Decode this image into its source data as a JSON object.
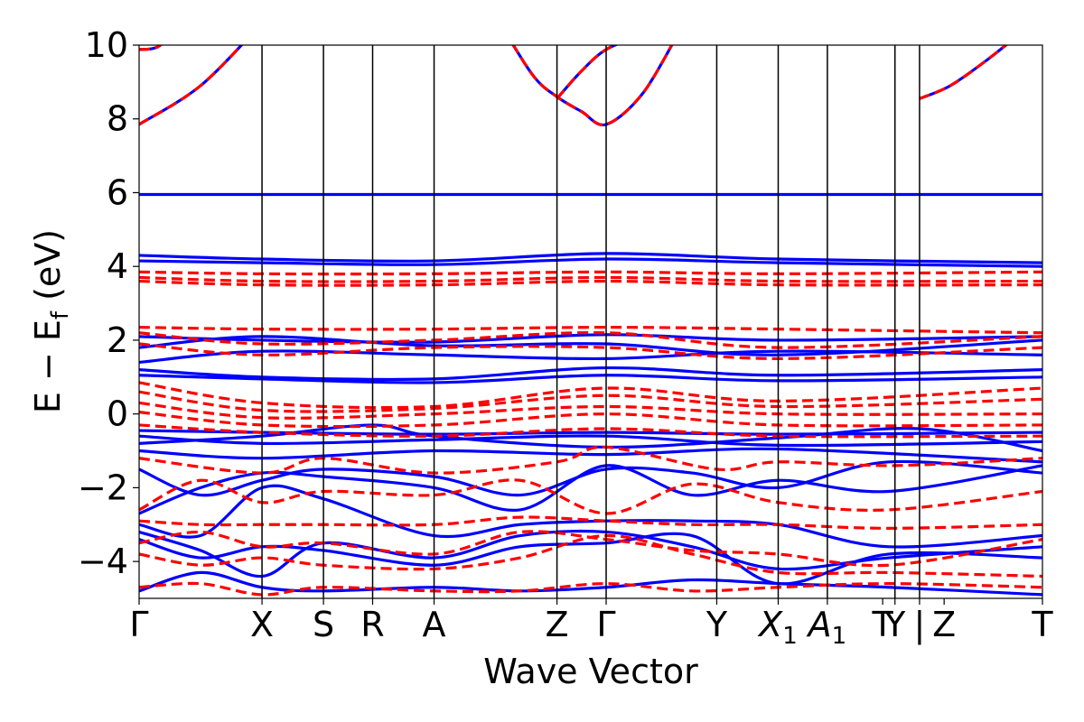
{
  "chart_data": {
    "type": "line",
    "title": "",
    "xlabel": "Wave Vector",
    "ylabel_parts": {
      "main": "E − E",
      "subscript": "f",
      "unit": " (eV)"
    },
    "ylim": [
      -5,
      10
    ],
    "yticks": [
      10,
      8,
      6,
      4,
      2,
      0,
      -2,
      -4
    ],
    "ytick_labels": [
      "10",
      "8",
      "6",
      "4",
      "2",
      "0",
      "−2",
      "−4"
    ],
    "grid": false,
    "legend": "none",
    "x_range": [
      0,
      7.35
    ],
    "kpoints": [
      {
        "pos": 0.0,
        "label": "Γ",
        "sub": ""
      },
      {
        "pos": 1.0,
        "label": "X",
        "sub": ""
      },
      {
        "pos": 1.5,
        "label": "S",
        "sub": ""
      },
      {
        "pos": 1.9,
        "label": "R",
        "sub": ""
      },
      {
        "pos": 2.4,
        "label": "A",
        "sub": ""
      },
      {
        "pos": 3.4,
        "label": "Z",
        "sub": ""
      },
      {
        "pos": 3.8,
        "label": "Γ",
        "sub": ""
      },
      {
        "pos": 4.7,
        "label": "Y",
        "sub": ""
      },
      {
        "pos": 5.2,
        "label": "X",
        "sub": "1"
      },
      {
        "pos": 5.6,
        "label": "A",
        "sub": "1"
      },
      {
        "pos": 6.05,
        "label": "T",
        "sub": ""
      },
      {
        "pos": 6.15,
        "label": "Y",
        "sub": ""
      },
      {
        "pos": 6.35,
        "label": "|",
        "sub": ""
      },
      {
        "pos": 6.55,
        "label": "Z",
        "sub": ""
      },
      {
        "pos": 7.35,
        "label": "T",
        "sub": ""
      }
    ],
    "vlines": [
      1.0,
      1.5,
      1.9,
      2.4,
      3.4,
      3.8,
      4.7,
      5.2,
      5.6,
      6.15,
      6.35
    ],
    "colors": {
      "series_a": "#0000ff",
      "series_b": "#ff0000",
      "vline": "#000000"
    },
    "series": [
      {
        "style": "solid",
        "color": "#0000ff",
        "bands": [
          {
            "x": [
              0,
              0.5,
              1.0
            ],
            "y": [
              7.85,
              8.9,
              10.6
            ]
          },
          {
            "x": [
              0,
              0.15,
              0.3
            ],
            "y": [
              9.88,
              9.95,
              10.4
            ]
          },
          {
            "x": [
              2.9,
              3.2,
              3.4,
              3.6,
              3.8,
              4.1,
              4.4
            ],
            "y": [
              10.8,
              9.2,
              8.6,
              8.2,
              7.85,
              8.7,
              10.4
            ]
          },
          {
            "x": [
              3.4,
              3.6,
              3.8,
              4.1
            ],
            "y": [
              8.55,
              9.3,
              9.88,
              10.3
            ]
          },
          {
            "x": [
              6.35,
              6.6,
              6.9,
              7.2
            ],
            "y": [
              8.55,
              8.9,
              9.6,
              10.4
            ]
          },
          {
            "x": [
              0,
              7.35
            ],
            "y": [
              5.95,
              5.95
            ]
          },
          {
            "x": [
              0,
              1.0,
              2.4,
              3.8,
              5.2,
              7.35
            ],
            "y": [
              4.3,
              4.2,
              4.15,
              4.35,
              4.2,
              4.1
            ]
          },
          {
            "x": [
              0,
              1.0,
              2.4,
              3.8,
              5.2,
              7.35
            ],
            "y": [
              4.15,
              4.1,
              4.05,
              4.2,
              4.1,
              4.0
            ]
          },
          {
            "x": [
              0,
              1.0,
              2.4,
              3.8,
              5.2,
              7.35
            ],
            "y": [
              2.1,
              2.0,
              1.95,
              2.15,
              2.0,
              2.1
            ]
          },
          {
            "x": [
              0,
              1.0,
              2.4,
              3.8,
              5.2,
              7.35
            ],
            "y": [
              1.8,
              2.1,
              1.85,
              1.9,
              1.6,
              2.0
            ]
          },
          {
            "x": [
              0,
              1.0,
              2.4,
              3.8,
              5.2,
              7.35
            ],
            "y": [
              1.4,
              1.7,
              1.6,
              1.5,
              1.7,
              1.6
            ]
          },
          {
            "x": [
              0,
              1.0,
              2.4,
              3.8,
              5.2,
              7.35
            ],
            "y": [
              1.2,
              1.0,
              0.95,
              1.25,
              1.05,
              1.2
            ]
          },
          {
            "x": [
              0,
              1.0,
              2.4,
              3.8,
              5.2,
              7.35
            ],
            "y": [
              1.05,
              0.95,
              0.85,
              1.05,
              0.9,
              1.0
            ]
          },
          {
            "x": [
              0,
              1.0,
              2.4,
              3.8,
              5.2,
              7.35
            ],
            "y": [
              -0.45,
              -0.5,
              -0.55,
              -0.5,
              -0.55,
              -0.5
            ]
          },
          {
            "x": [
              0,
              1.0,
              2.4,
              3.8,
              5.2,
              7.35
            ],
            "y": [
              -0.6,
              -0.8,
              -0.7,
              -0.6,
              -0.85,
              -0.75
            ]
          },
          {
            "x": [
              0,
              1.0,
              1.9,
              2.4,
              3.8,
              5.2,
              6.35,
              7.35
            ],
            "y": [
              -0.8,
              -0.6,
              -0.3,
              -0.6,
              -0.9,
              -0.65,
              -0.4,
              -1.0
            ]
          },
          {
            "x": [
              0,
              1.0,
              2.4,
              3.8,
              5.2,
              7.35
            ],
            "y": [
              -1.0,
              -1.2,
              -1.0,
              -1.1,
              -0.95,
              -1.3
            ]
          },
          {
            "x": [
              0,
              0.5,
              1.0,
              1.5,
              2.4,
              3.1,
              3.8,
              4.5,
              5.2,
              6.1,
              7.35
            ],
            "y": [
              -1.5,
              -2.2,
              -1.8,
              -1.5,
              -1.7,
              -2.2,
              -1.5,
              -1.6,
              -2.0,
              -1.3,
              -1.6
            ]
          },
          {
            "x": [
              0,
              0.5,
              1.0,
              1.5,
              2.4,
              3.1,
              3.8,
              4.5,
              5.2,
              6.1,
              7.35
            ],
            "y": [
              -2.7,
              -2.0,
              -1.6,
              -1.7,
              -2.0,
              -2.6,
              -1.4,
              -2.2,
              -1.8,
              -2.1,
              -1.4
            ]
          },
          {
            "x": [
              0,
              0.5,
              1.0,
              1.5,
              2.4,
              3.1,
              3.8,
              4.5,
              5.2,
              6.1,
              7.35
            ],
            "y": [
              -3.0,
              -3.3,
              -2.0,
              -2.3,
              -3.3,
              -3.0,
              -2.9,
              -2.9,
              -3.0,
              -3.6,
              -3.3
            ]
          },
          {
            "x": [
              0,
              0.5,
              1.0,
              1.5,
              2.4,
              3.1,
              3.8,
              4.5,
              5.2,
              6.1,
              7.35
            ],
            "y": [
              -3.2,
              -3.7,
              -4.4,
              -3.5,
              -3.9,
              -3.3,
              -3.2,
              -3.6,
              -4.2,
              -3.9,
              -3.6
            ]
          },
          {
            "x": [
              0,
              0.5,
              1.0,
              1.5,
              2.4,
              3.1,
              3.8,
              4.5,
              5.2,
              6.1,
              7.35
            ],
            "y": [
              -3.4,
              -3.9,
              -3.6,
              -3.7,
              -4.1,
              -3.6,
              -3.5,
              -3.3,
              -4.6,
              -3.8,
              -3.9
            ]
          },
          {
            "x": [
              0,
              0.5,
              1.0,
              1.5,
              2.4,
              3.1,
              3.8,
              4.5,
              5.2,
              6.1,
              7.35
            ],
            "y": [
              -4.8,
              -4.3,
              -4.7,
              -4.8,
              -4.7,
              -4.8,
              -4.7,
              -4.5,
              -4.6,
              -4.7,
              -4.9
            ]
          }
        ]
      },
      {
        "style": "dashed",
        "color": "#ff0000",
        "bands": [
          {
            "x": [
              0,
              0.5,
              1.0
            ],
            "y": [
              7.85,
              8.9,
              10.6
            ]
          },
          {
            "x": [
              0,
              0.15,
              0.3
            ],
            "y": [
              9.88,
              9.95,
              10.4
            ]
          },
          {
            "x": [
              2.9,
              3.2,
              3.4,
              3.6,
              3.8,
              4.1,
              4.4
            ],
            "y": [
              10.8,
              9.2,
              8.6,
              8.2,
              7.85,
              8.7,
              10.4
            ]
          },
          {
            "x": [
              3.4,
              3.6,
              3.8,
              4.1
            ],
            "y": [
              8.55,
              9.3,
              9.88,
              10.3
            ]
          },
          {
            "x": [
              6.35,
              6.6,
              6.9,
              7.2
            ],
            "y": [
              8.55,
              8.9,
              9.6,
              10.4
            ]
          },
          {
            "x": [
              0,
              1.0,
              2.4,
              3.8,
              5.2,
              7.35
            ],
            "y": [
              3.85,
              3.8,
              3.8,
              3.85,
              3.8,
              3.85
            ]
          },
          {
            "x": [
              0,
              1.0,
              2.4,
              3.8,
              5.2,
              7.35
            ],
            "y": [
              3.7,
              3.6,
              3.6,
              3.7,
              3.6,
              3.6
            ]
          },
          {
            "x": [
              0,
              1.0,
              2.4,
              3.8,
              5.2,
              7.35
            ],
            "y": [
              3.6,
              3.5,
              3.5,
              3.6,
              3.5,
              3.5
            ]
          },
          {
            "x": [
              0,
              1.0,
              2.4,
              3.8,
              5.2,
              7.35
            ],
            "y": [
              2.35,
              2.3,
              2.3,
              2.35,
              2.3,
              2.2
            ]
          },
          {
            "x": [
              0,
              1.0,
              2.4,
              3.8,
              5.2,
              7.35
            ],
            "y": [
              2.2,
              1.9,
              2.0,
              2.2,
              1.8,
              2.1
            ]
          },
          {
            "x": [
              0,
              1.0,
              2.4,
              3.8,
              5.2,
              7.35
            ],
            "y": [
              1.9,
              1.6,
              1.8,
              1.8,
              1.5,
              1.8
            ]
          },
          {
            "x": [
              0,
              1.0,
              2.4,
              3.8,
              5.2,
              7.35
            ],
            "y": [
              0.85,
              0.3,
              0.2,
              0.7,
              0.35,
              0.7
            ]
          },
          {
            "x": [
              0,
              1.0,
              2.4,
              3.8,
              5.2,
              7.35
            ],
            "y": [
              0.6,
              0.1,
              0.15,
              0.5,
              0.2,
              0.4
            ]
          },
          {
            "x": [
              0,
              1.0,
              2.4,
              3.8,
              5.2,
              7.35
            ],
            "y": [
              0.3,
              -0.1,
              0.0,
              0.2,
              0.0,
              0.0
            ]
          },
          {
            "x": [
              0,
              1.0,
              2.4,
              3.8,
              5.2,
              7.35
            ],
            "y": [
              0.05,
              -0.3,
              -0.3,
              0.0,
              -0.3,
              -0.3
            ]
          },
          {
            "x": [
              0,
              1.0,
              2.4,
              3.8,
              5.2,
              7.35
            ],
            "y": [
              -0.3,
              -0.5,
              -0.6,
              -0.4,
              -0.6,
              -0.6
            ]
          },
          {
            "x": [
              0,
              1.0,
              1.5,
              2.4,
              3.4,
              3.8,
              4.7,
              5.2,
              6.15,
              7.35
            ],
            "y": [
              -1.2,
              -1.6,
              -1.2,
              -1.6,
              -1.3,
              -0.9,
              -1.5,
              -1.3,
              -1.4,
              -1.2
            ]
          },
          {
            "x": [
              0,
              0.5,
              1.0,
              1.5,
              2.4,
              3.1,
              3.8,
              4.5,
              5.2,
              6.1,
              7.35
            ],
            "y": [
              -2.6,
              -1.8,
              -2.4,
              -2.1,
              -2.2,
              -1.8,
              -2.7,
              -1.9,
              -2.4,
              -2.6,
              -2.1
            ]
          },
          {
            "x": [
              0,
              0.5,
              1.0,
              1.5,
              2.4,
              3.1,
              3.8,
              4.5,
              5.2,
              6.1,
              7.35
            ],
            "y": [
              -2.9,
              -3.0,
              -3.0,
              -3.0,
              -3.0,
              -2.8,
              -2.9,
              -3.0,
              -3.0,
              -3.1,
              -3.0
            ]
          },
          {
            "x": [
              0,
              0.5,
              1.0,
              1.5,
              2.4,
              3.1,
              3.8,
              4.5,
              5.2,
              6.1,
              7.35
            ],
            "y": [
              -3.5,
              -3.2,
              -3.6,
              -3.5,
              -3.8,
              -3.2,
              -3.4,
              -3.7,
              -3.8,
              -4.1,
              -3.4
            ]
          },
          {
            "x": [
              0,
              0.5,
              1.0,
              1.5,
              2.4,
              3.1,
              3.8,
              4.5,
              5.2,
              6.1,
              7.35
            ],
            "y": [
              -3.8,
              -4.1,
              -3.9,
              -4.1,
              -4.2,
              -3.9,
              -3.3,
              -3.8,
              -4.3,
              -4.3,
              -4.4
            ]
          },
          {
            "x": [
              0,
              0.5,
              1.0,
              1.5,
              2.4,
              3.1,
              3.8,
              4.5,
              5.2,
              6.1,
              7.35
            ],
            "y": [
              -4.7,
              -4.6,
              -4.9,
              -4.7,
              -4.8,
              -4.8,
              -4.6,
              -4.8,
              -4.7,
              -4.6,
              -4.7
            ]
          }
        ]
      }
    ]
  }
}
